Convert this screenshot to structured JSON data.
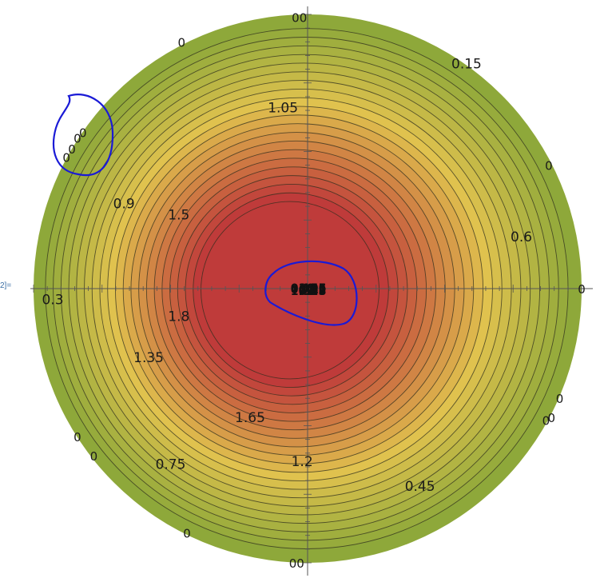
{
  "cell_label": "2]=",
  "chart_data": {
    "type": "contour",
    "subtype": "polar-disk contour",
    "x_range": [
      -1,
      1
    ],
    "y_range": [
      -1,
      1
    ],
    "levels": [
      0.15,
      0.3,
      0.45,
      0.6,
      0.75,
      0.9,
      1.05,
      1.2,
      1.35,
      1.5,
      1.65,
      1.8
    ],
    "peak_level": 1.8,
    "contour_labels": [
      {
        "text": "0.15",
        "x": 0.58,
        "y": 0.82
      },
      {
        "text": "0.3",
        "x": -0.93,
        "y": -0.04
      },
      {
        "text": "0.45",
        "x": 0.41,
        "y": -0.72
      },
      {
        "text": "0.6",
        "x": 0.78,
        "y": 0.19
      },
      {
        "text": "0.75",
        "x": -0.5,
        "y": -0.64
      },
      {
        "text": "0.9",
        "x": -0.67,
        "y": 0.31
      },
      {
        "text": "1.05",
        "x": -0.09,
        "y": 0.66
      },
      {
        "text": "1.2",
        "x": -0.02,
        "y": -0.63
      },
      {
        "text": "1.35",
        "x": -0.58,
        "y": -0.25
      },
      {
        "text": "1.5",
        "x": -0.47,
        "y": 0.27
      },
      {
        "text": "1.65",
        "x": -0.21,
        "y": -0.47
      },
      {
        "text": "1.8",
        "x": -0.47,
        "y": -0.1
      }
    ],
    "edge_labels": [
      {
        "text": "00",
        "x": -0.03,
        "y": 0.99
      },
      {
        "text": "0",
        "x": -0.46,
        "y": 0.9
      },
      {
        "text": "0",
        "x": 0.88,
        "y": 0.45
      },
      {
        "text": "0",
        "x": 1.0,
        "y": 0.0
      },
      {
        "text": "0",
        "x": 0.92,
        "y": -0.4
      },
      {
        "text": "0",
        "x": 0.89,
        "y": -0.47
      },
      {
        "text": "0",
        "x": 0.87,
        "y": -0.48
      },
      {
        "text": "0",
        "x": -0.84,
        "y": -0.54
      },
      {
        "text": "0",
        "x": -0.78,
        "y": -0.61
      },
      {
        "text": "0",
        "x": -0.44,
        "y": -0.89
      },
      {
        "text": "00",
        "x": -0.04,
        "y": -1.0
      },
      {
        "text": "0",
        "x": -0.82,
        "y": 0.57
      },
      {
        "text": "0",
        "x": -0.84,
        "y": 0.55
      },
      {
        "text": "0",
        "x": -0.86,
        "y": 0.51
      },
      {
        "text": "0",
        "x": -0.88,
        "y": 0.48
      }
    ],
    "annotations": [
      {
        "type": "freehand-circle",
        "color": "#1a1ad6",
        "around": "cluster of 0 labels near the upper-left edge"
      },
      {
        "type": "freehand-circle",
        "color": "#1a1ad6",
        "around": "cluster of overlapping labels at the center"
      }
    ],
    "colors": {
      "low": "#8ea83a",
      "mid": "#e0c24e",
      "high": "#bf3b3a",
      "contour_line": "#2e2e1e",
      "axis": "#555555",
      "annotation": "#1a1ad6"
    }
  }
}
